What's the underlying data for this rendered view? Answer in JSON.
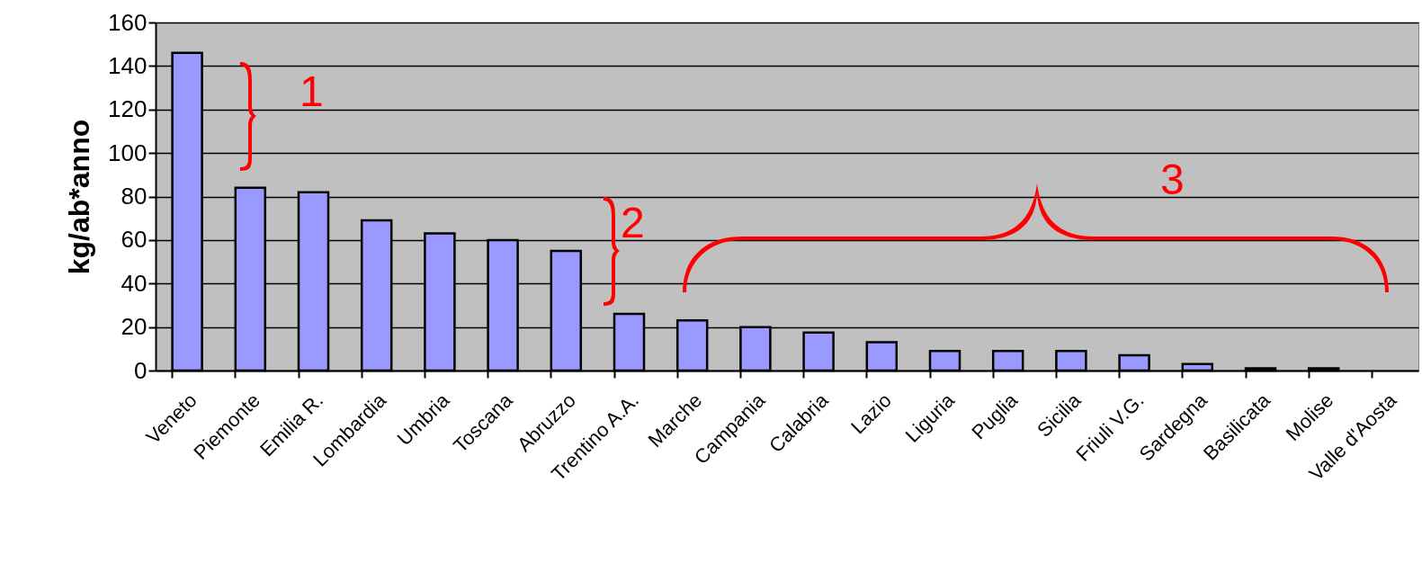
{
  "chart_data": {
    "type": "bar",
    "ylabel": "kg/ab*anno",
    "categories": [
      "Veneto",
      "Piemonte",
      "Emilia R.",
      "Lombardia",
      "Umbria",
      "Toscana",
      "Abruzzo",
      "Trentino A.A.",
      "Marche",
      "Campania",
      "Calabria",
      "Lazio",
      "Liguria",
      "Puglia",
      "Sicilia",
      "Friuli V.G.",
      "Sardegna",
      "Basilicata",
      "Molise",
      "Valle d'Aosta"
    ],
    "values": [
      146,
      84,
      82,
      69,
      63,
      60,
      55,
      26,
      23,
      20,
      17.5,
      13,
      9,
      9,
      9,
      7,
      3,
      1,
      1,
      null
    ],
    "color": "#9999ff",
    "ylim": [
      0,
      160
    ],
    "yticks": [
      0,
      20,
      40,
      60,
      80,
      100,
      120,
      140,
      160
    ],
    "grid": "y",
    "annotations": [
      "1",
      "2",
      "3"
    ]
  }
}
